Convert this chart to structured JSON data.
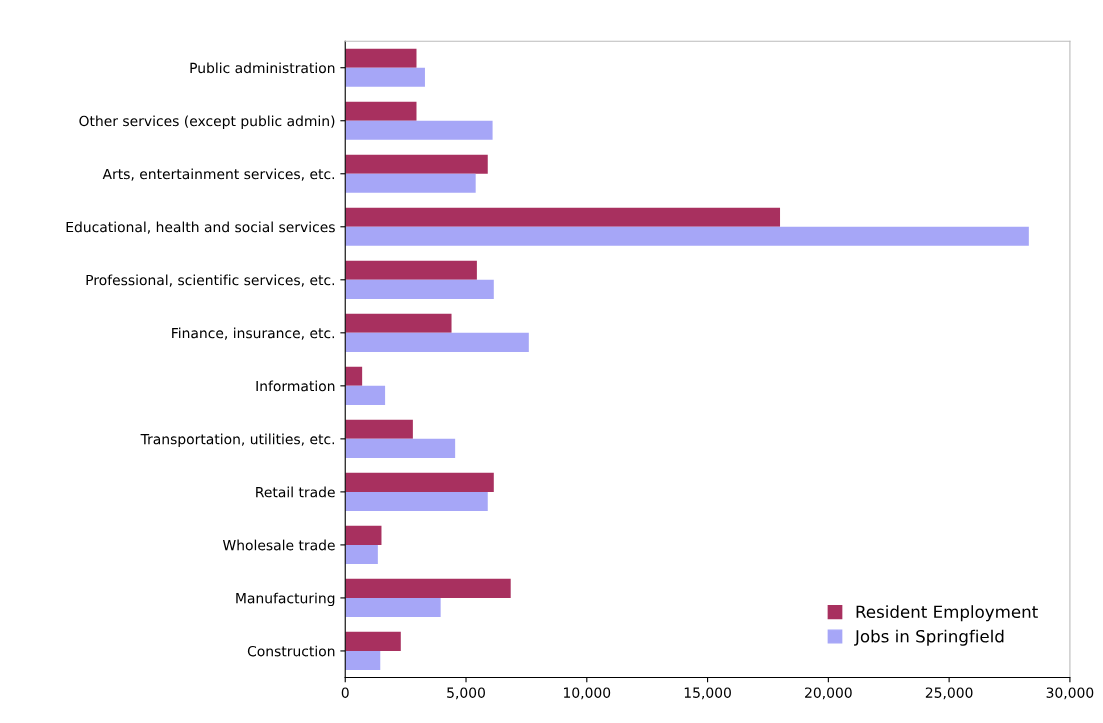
{
  "chart_data": {
    "type": "bar",
    "orientation": "horizontal",
    "categories": [
      "Public administration",
      "Other services (except public admin)",
      "Arts, entertainment services, etc.",
      "Educational, health and social services",
      "Professional, scientific services, etc.",
      "Finance, insurance, etc.",
      "Information",
      "Transportation, utilities, etc.",
      "Retail trade",
      "Wholesale trade",
      "Manufacturing",
      "Construction"
    ],
    "series": [
      {
        "name": "Resident Employment",
        "color": "#a8305f",
        "values": [
          2950,
          2950,
          5900,
          18000,
          5450,
          4400,
          700,
          2800,
          6150,
          1500,
          6850,
          2300
        ]
      },
      {
        "name": "Jobs in Springfield",
        "color": "#a6a6f7",
        "values": [
          3300,
          6100,
          5400,
          28300,
          6150,
          7600,
          1650,
          4550,
          5900,
          1350,
          3950,
          1450
        ]
      }
    ],
    "xlim": [
      0,
      30000
    ],
    "xticks": [
      {
        "value": 0,
        "label": "0"
      },
      {
        "value": 5000,
        "label": "5,000"
      },
      {
        "value": 10000,
        "label": "10,000"
      },
      {
        "value": 15000,
        "label": "15,000"
      },
      {
        "value": 20000,
        "label": "20,000"
      },
      {
        "value": 25000,
        "label": "25,000"
      },
      {
        "value": 30000,
        "label": "30,000"
      }
    ],
    "grid": false,
    "legend": "bottom right"
  }
}
